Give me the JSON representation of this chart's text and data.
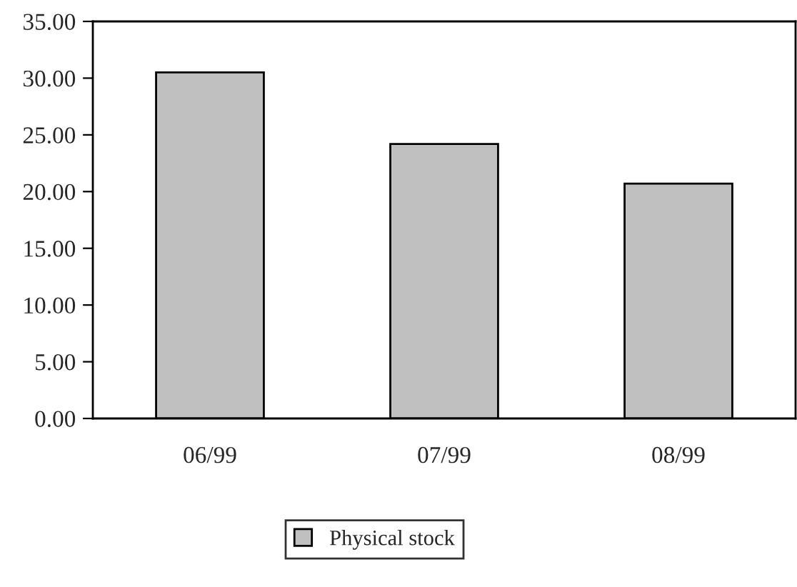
{
  "chart_data": {
    "type": "bar",
    "categories": [
      "06/99",
      "07/99",
      "08/99"
    ],
    "series": [
      {
        "name": "Physical stock",
        "color": "#c0c0c0",
        "values": [
          30.5,
          24.2,
          20.7
        ]
      }
    ],
    "ylim": [
      0,
      35
    ],
    "yticks": [
      {
        "value": 0,
        "label": "0.00"
      },
      {
        "value": 5,
        "label": "5.00"
      },
      {
        "value": 10,
        "label": "10.00"
      },
      {
        "value": 15,
        "label": "15.00"
      },
      {
        "value": 20,
        "label": "20.00"
      },
      {
        "value": 25,
        "label": "25.00"
      },
      {
        "value": 30,
        "label": "30.00"
      },
      {
        "value": 35,
        "label": "35.00"
      }
    ],
    "grid": false,
    "legend": "bottom"
  }
}
